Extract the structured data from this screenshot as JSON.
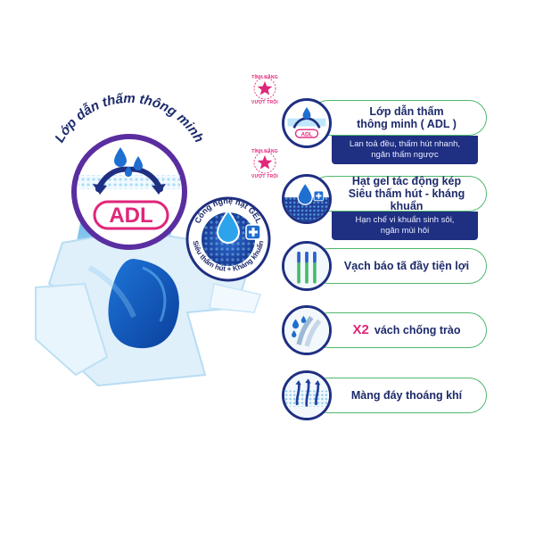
{
  "left_panel": {
    "arc_title": "Lớp dẫn thấm thông minh",
    "adl_label": "ADL",
    "gel_arc_label": "Công nghệ hạt GEL",
    "gel_arc_sub": "Siêu thấm hút + Kháng khuẩn"
  },
  "features": [
    {
      "badge_top": "TÍNH NĂNG",
      "badge_bottom": "VƯỢT TRỘI",
      "title_line1": "Lớp dẫn thấm",
      "title_line2": "thông minh ( ADL )",
      "desc_line1": "Lan toả đều, thấm hút nhanh,",
      "desc_line2": "ngăn thấm ngược",
      "icon": "adl-icon"
    },
    {
      "badge_top": "TÍNH NĂNG",
      "badge_bottom": "VƯỢT TRỘI",
      "title_line1": "Hạt gel tác động kép",
      "title_line2": "Siêu thấm hút - kháng khuẩn",
      "desc_line1": "Hạn chế vi khuẩn sinh sôi,",
      "desc_line2": "ngăn mùi hôi",
      "icon": "gel-drop-icon"
    },
    {
      "title": "Vạch báo tã đầy tiện lợi",
      "icon": "wetness-indicator-icon"
    },
    {
      "title_accent": "X2",
      "title": "vách chống trào",
      "icon": "leak-guard-icon"
    },
    {
      "title": "Màng đáy thoáng khí",
      "icon": "breathable-layer-icon"
    }
  ],
  "colors": {
    "navy": "#1f2f82",
    "pink": "#e0267a",
    "green_outline": "#4fb96b",
    "light_blue": "#9ed4f5"
  }
}
